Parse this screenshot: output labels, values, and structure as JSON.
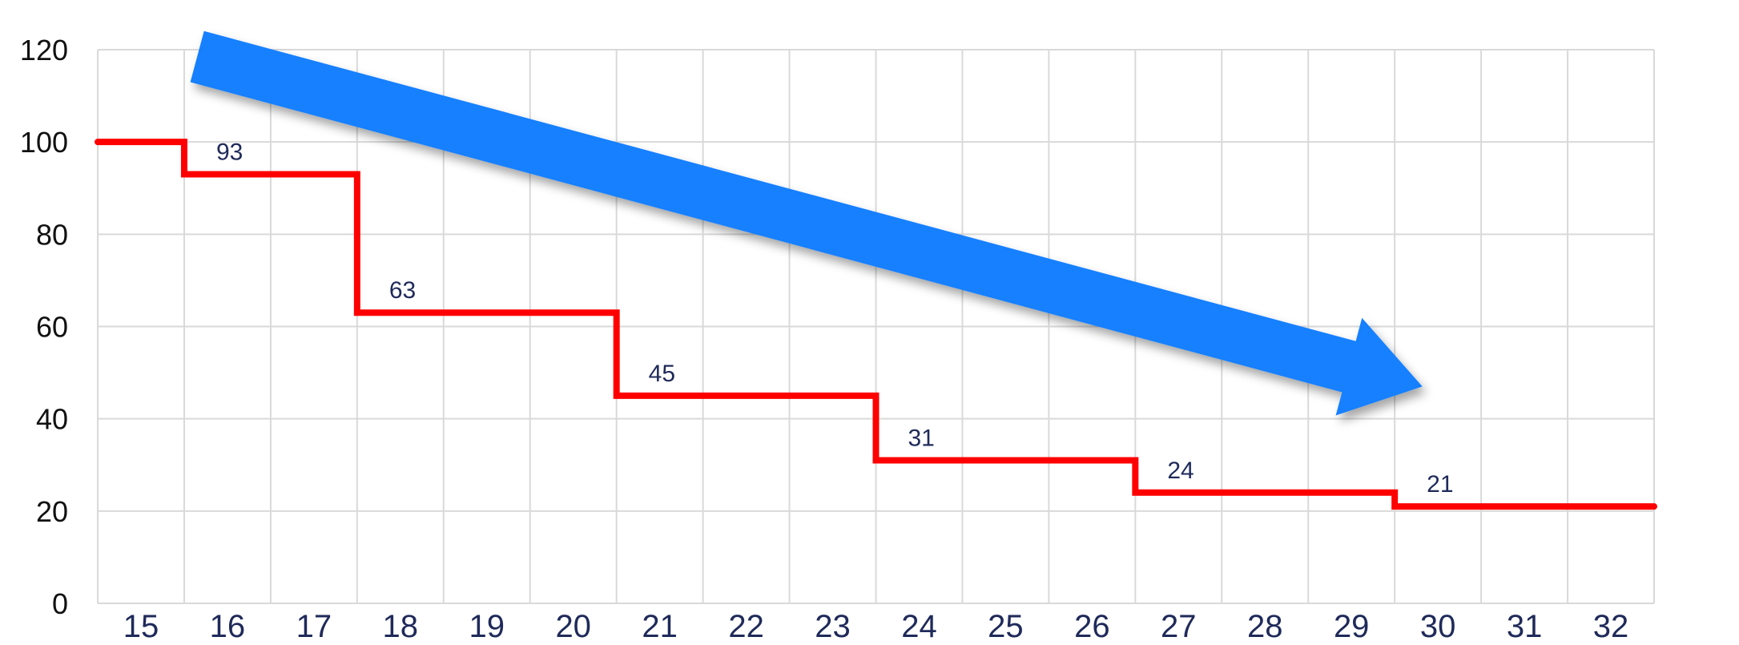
{
  "chart_data": {
    "type": "line",
    "step": true,
    "title": "",
    "xlabel": "",
    "ylabel": "",
    "ylim": [
      0,
      120
    ],
    "yticks": [
      "0",
      "20",
      "40",
      "60",
      "80",
      "100",
      "120"
    ],
    "xtick_labels": [
      "15",
      "16",
      "17",
      "18",
      "19",
      "20",
      "21",
      "22",
      "23",
      "24",
      "25",
      "26",
      "27",
      "28",
      "29",
      "30",
      "31",
      "32"
    ],
    "grid": true,
    "series": [
      {
        "color": "#ff0000",
        "points": [
          {
            "x": 0,
            "y": 100
          },
          {
            "x": 1,
            "y": 93
          },
          {
            "x": 3,
            "y": 63
          },
          {
            "x": 6,
            "y": 45
          },
          {
            "x": 9,
            "y": 31
          },
          {
            "x": 12,
            "y": 24
          },
          {
            "x": 15,
            "y": 21
          },
          {
            "x": 18,
            "y": 21
          }
        ]
      }
    ],
    "data_labels": [
      {
        "x": 1,
        "y": 93,
        "text": "93"
      },
      {
        "x": 3,
        "y": 63,
        "text": "63"
      },
      {
        "x": 6,
        "y": 45,
        "text": "45"
      },
      {
        "x": 9,
        "y": 31,
        "text": "31"
      },
      {
        "x": 12,
        "y": 24,
        "text": "24"
      },
      {
        "x": 15,
        "y": 21,
        "text": "21"
      }
    ],
    "trend_arrow": {
      "color": "#1580ff",
      "direction": "down-right"
    },
    "colors": {
      "grid": "#d9d9d9",
      "line": "#ff0000",
      "arrow": "#1580ff",
      "xtick": "#1f2a5a",
      "ytick": "#111111"
    }
  }
}
